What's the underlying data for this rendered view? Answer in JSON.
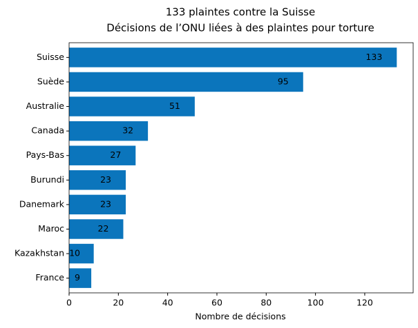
{
  "chart_data": {
    "type": "barh",
    "title": "133 plaintes contre la Suisse",
    "subtitle": "Décisions de l’ONU liées à des plaintes pour torture",
    "x_label": "Nombre de décisions",
    "categories": [
      "Suisse",
      "Suède",
      "Australie",
      "Canada",
      "Pays-Bas",
      "Burundi",
      "Danemark",
      "Maroc",
      "Kazakhstan",
      "France"
    ],
    "values": [
      133,
      95,
      51,
      32,
      27,
      23,
      23,
      22,
      10,
      9
    ],
    "color": "#0b75bc",
    "xlim": [
      0,
      139.65
    ],
    "xticks": [
      0,
      20,
      40,
      60,
      80,
      100,
      120
    ]
  }
}
